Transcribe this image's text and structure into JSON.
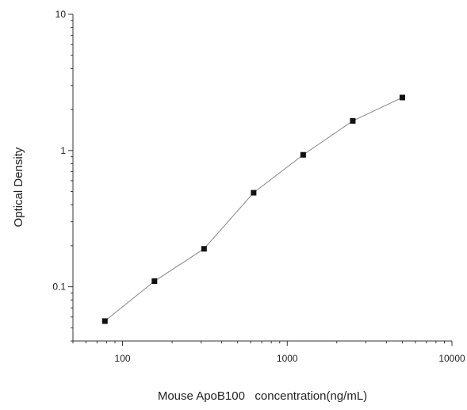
{
  "chart_data": {
    "type": "line",
    "title": "",
    "xlabel": "Mouse ApoB100   concentration(ng/mL)",
    "ylabel": "Optical  Density",
    "x_scale": "log",
    "y_scale": "log",
    "xlim": [
      50,
      10000
    ],
    "ylim": [
      0.04,
      10
    ],
    "grid": false,
    "x_tick_labels": [
      "100",
      "1000",
      "10000"
    ],
    "y_tick_labels": [
      "0.1",
      "1",
      "10"
    ],
    "series": [
      {
        "x": [
          78.125,
          156.25,
          312.5,
          625,
          1250,
          2500,
          5000
        ],
        "y": [
          0.056,
          0.11,
          0.19,
          0.49,
          0.93,
          1.65,
          2.45
        ]
      }
    ],
    "colors": {
      "marker": "#111111",
      "line": "#888888",
      "axis": "#333333"
    }
  }
}
